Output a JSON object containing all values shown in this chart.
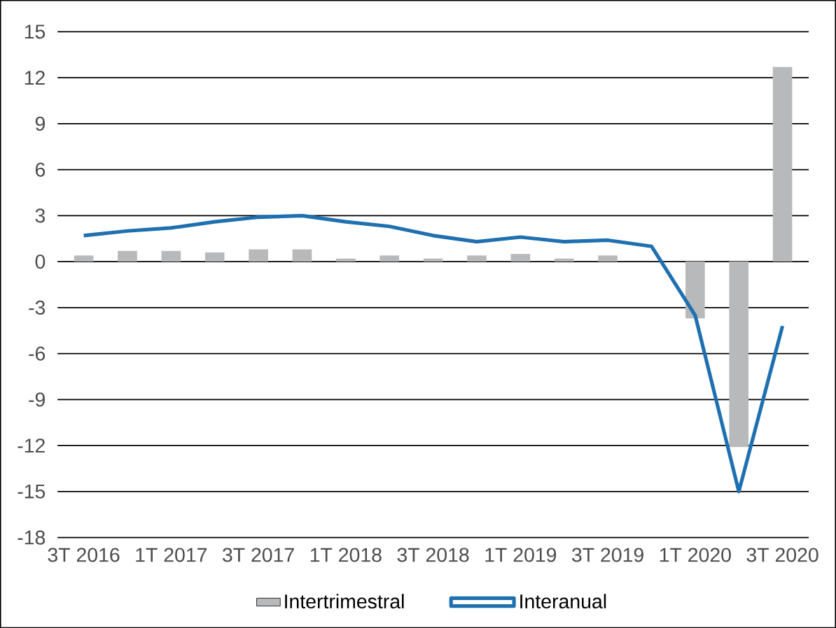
{
  "chart_data": {
    "type": "bar",
    "categories": [
      "3T 2016",
      null,
      "1T 2017",
      null,
      "3T 2017",
      null,
      "1T 2018",
      null,
      "3T 2018",
      null,
      "1T 2019",
      null,
      "3T 2019",
      null,
      "1T 2020",
      null,
      "3T 2020"
    ],
    "series": [
      {
        "name": "Intertrimestral",
        "color": "#b7b9bb",
        "values": [
          0.4,
          0.7,
          0.7,
          0.6,
          0.8,
          0.8,
          0.2,
          0.4,
          0.2,
          0.4,
          0.5,
          0.2,
          0.4,
          0.0,
          -3.7,
          -12.1,
          12.7
        ]
      },
      {
        "name": "Interanual",
        "type": "line",
        "color": "#1f70b0",
        "values": [
          1.7,
          2.0,
          2.2,
          2.6,
          2.9,
          3.0,
          2.6,
          2.3,
          1.7,
          1.3,
          1.6,
          1.3,
          1.4,
          1.0,
          -3.5,
          -15.0,
          -4.2
        ]
      }
    ],
    "ylim": [
      -18,
      15
    ],
    "yticks": [
      -18,
      -15,
      -12,
      -9,
      -6,
      -3,
      0,
      3,
      6,
      9,
      12,
      15
    ],
    "grid": "y",
    "legend": "bottom"
  }
}
